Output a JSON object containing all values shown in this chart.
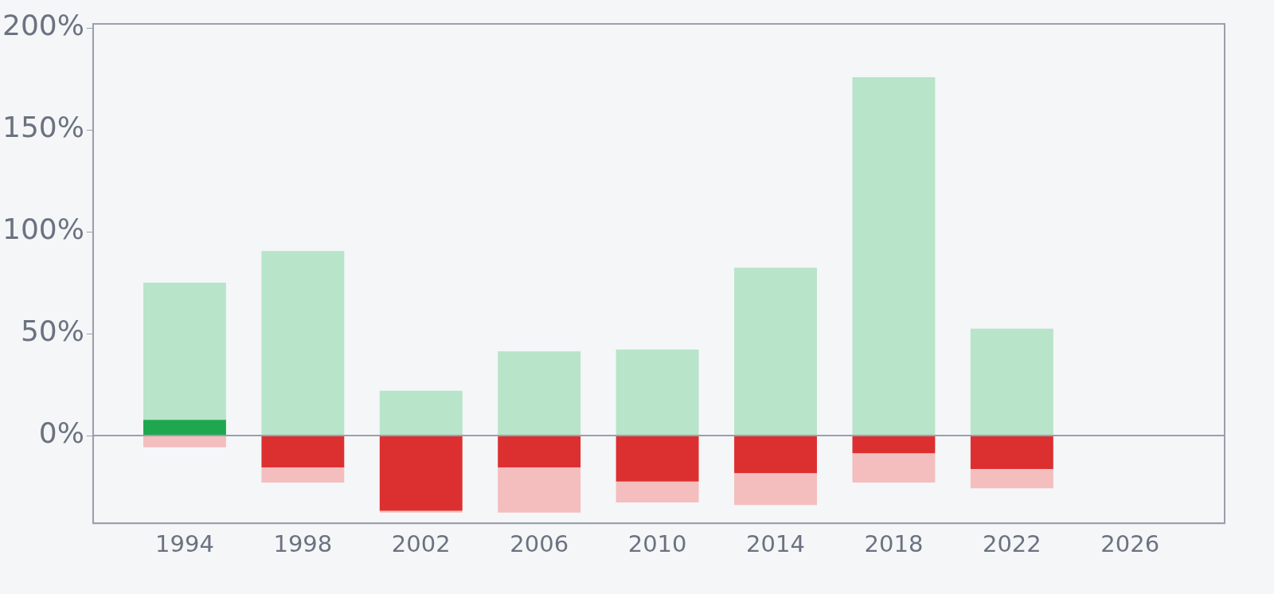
{
  "chart_data": {
    "type": "bar",
    "x": [
      1994,
      1998,
      2002,
      2006,
      2010,
      2014,
      2018,
      2022
    ],
    "series": [
      {
        "colors": [
          "#1fa750",
          "#dc3030",
          "#dc3030",
          "#dc3030",
          "#dc3030",
          "#dc3030",
          "#dc3030",
          "#dc3030"
        ],
        "values": [
          7.8,
          -15.6,
          -36.9,
          -15.6,
          -22.5,
          -18.4,
          -8.6,
          -16.4
        ]
      },
      {
        "color": "#b8e4c9",
        "values": [
          67.2,
          90.6,
          22,
          41.4,
          42.2,
          82.4,
          175.8,
          52.5
        ]
      },
      {
        "color": "#f4bebe",
        "values": [
          -5.7,
          -7.4,
          -0.8,
          -22.1,
          -10.3,
          -15.6,
          -14.4,
          -9.4
        ]
      }
    ],
    "stacked": true,
    "xlim": [
      1990.9,
      2029.2
    ],
    "xticks": [
      1994,
      1998,
      2002,
      2006,
      2010,
      2014,
      2018,
      2022,
      2026
    ],
    "ylim": [
      -43,
      202
    ],
    "yticks": [
      {
        "value": 0,
        "label": "0%"
      },
      {
        "value": 50,
        "label": "50%"
      },
      {
        "value": 100,
        "label": "100%"
      },
      {
        "value": 150,
        "label": "150%"
      },
      {
        "value": 200,
        "label": "200%"
      }
    ],
    "ref_lines": [
      {
        "axis": "y",
        "value": 0,
        "color": "#9aa0ac"
      }
    ],
    "grid": false,
    "legend": false
  }
}
